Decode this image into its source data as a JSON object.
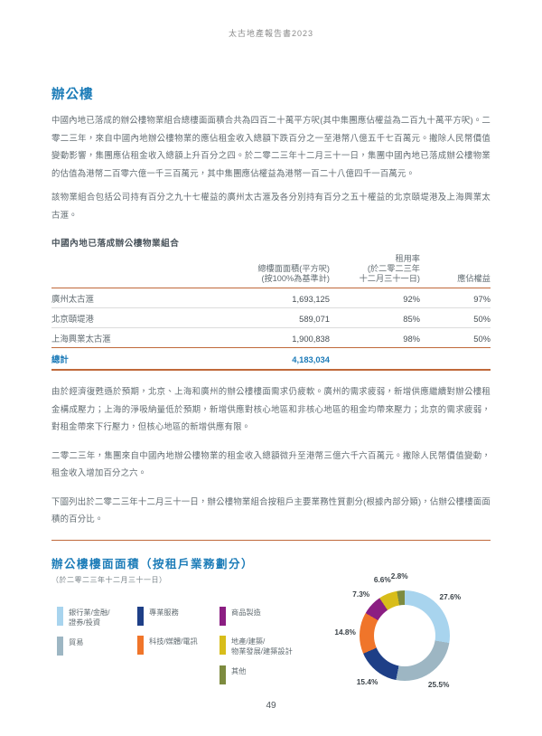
{
  "page": {
    "header_title": "太古地產報告書2023",
    "page_number": "49"
  },
  "section": {
    "heading": "辦公樓",
    "para1": "中國內地已落成的辦公樓物業組合總樓面面積合共為四百二十萬平方呎(其中集團應佔權益為二百九十萬平方呎)。二零二三年，來自中國內地辦公樓物業的應佔租金收入總額下跌百分之一至港幣八億五千七百萬元。撇除人民幣價值變動影響，集團應佔租金收入總額上升百分之四。於二零二三年十二月三十一日，集團中國內地已落成辦公樓物業的估值為港幣二百零六億一千三百萬元，其中集團應佔權益為港幣一百二十八億四千一百萬元。",
    "para2": "該物業組合包括公司持有百分之九十七權益的廣州太古滙及各分別持有百分之五十權益的北京頤堤港及上海興業太古滙。",
    "para3": "由於經濟復甦遜於預期，北京、上海和廣州的辦公樓樓面需求仍疲軟。廣州的需求疲弱，新增供應繼續對辦公樓租金構成壓力；上海的淨吸納量低於預期，新增供應對核心地區和非核心地區的租金均帶來壓力；北京的需求疲弱，對租金帶來下行壓力，但核心地區的新增供應有限。",
    "para4": "二零二三年，集團來自中國內地辦公樓物業的租金收入總額微升至港幣三億六千六百萬元。撇除人民幣價值變動，租金收入增加百分之六。",
    "para5": "下圖列出於二零二三年十二月三十一日，辦公樓物業組合按租戶主要業務性質劃分(根據內部分類)，佔辦公樓樓面面積的百分比。"
  },
  "table": {
    "title": "中國內地已落成辦公樓物業組合",
    "header": {
      "area_l1": "總樓面面積(平方呎)",
      "area_l2": "(按100%為基準計)",
      "occ_l1": "租用率",
      "occ_l2": "(於二零二三年",
      "occ_l3": "十二月三十一日)",
      "interest": "應佔權益"
    },
    "rows": [
      {
        "name": "廣州太古滙",
        "area": "1,693,125",
        "occupancy": "92%",
        "interest": "97%"
      },
      {
        "name": "北京頤堤港",
        "area": "589,071",
        "occupancy": "85%",
        "interest": "50%"
      },
      {
        "name": "上海興業太古滙",
        "area": "1,900,838",
        "occupancy": "98%",
        "interest": "50%"
      }
    ],
    "total": {
      "label": "總計",
      "area": "4,183,034",
      "occupancy": "",
      "interest": ""
    }
  },
  "chart_data": {
    "type": "pie",
    "donut": true,
    "title": "辦公樓樓面面積（按租戶業務劃分）",
    "subtitle": "（於二零二三年十二月三十一日）",
    "categories": [
      "銀行業/金融/證券/投資",
      "貿易",
      "專業服務",
      "科技/媒體/電訊",
      "商品製造",
      "地產/建築/物業發展/建築設計",
      "其他"
    ],
    "values": [
      27.6,
      25.5,
      15.4,
      14.8,
      7.3,
      6.6,
      2.8
    ],
    "value_labels": [
      "27.6%",
      "25.5%",
      "15.4%",
      "14.8%",
      "7.3%",
      "6.6%",
      "2.8%"
    ],
    "colors": [
      "#a8d4ee",
      "#9db6c3",
      "#1e3f87",
      "#f0752a",
      "#8b1e82",
      "#d8bd1a",
      "#7d8b3f"
    ],
    "start_angle_deg": 0,
    "direction": "clockwise",
    "legend_position": "left",
    "legend": {
      "columns": [
        [
          {
            "lines": [
              "銀行業/金融/",
              "證券/投資"
            ],
            "color_index": 0
          },
          {
            "lines": [
              "貿易"
            ],
            "color_index": 1
          }
        ],
        [
          {
            "lines": [
              "專業服務"
            ],
            "color_index": 2
          },
          {
            "lines": [
              "科技/媒體/電訊"
            ],
            "color_index": 3
          }
        ],
        [
          {
            "lines": [
              "商品製造"
            ],
            "color_index": 4
          },
          {
            "lines": [
              "地產/建築/",
              "物業發展/建築設計"
            ],
            "color_index": 5
          },
          {
            "lines": [
              "其他"
            ],
            "color_index": 6
          }
        ]
      ]
    }
  },
  "colors": {
    "accent_blue": "#1c7cb8",
    "rule_orange": "#c0693a",
    "body_text": "#626c72"
  }
}
